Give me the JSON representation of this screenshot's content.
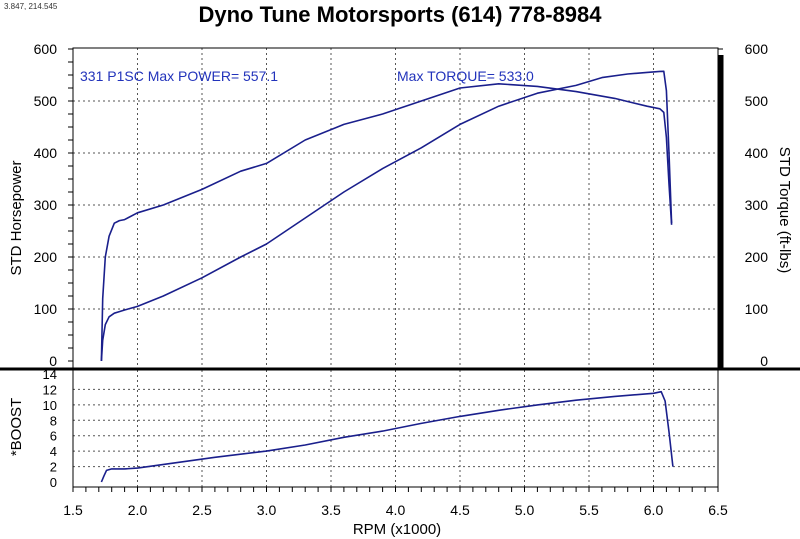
{
  "header": {
    "coords": "3.847, 214.545",
    "title": "Dyno Tune Motorsports (614) 778-8984"
  },
  "chart_data": [
    {
      "type": "line",
      "xlabel": "RPM (x1000)",
      "ylabel": "STD Horsepower",
      "y2label": "STD Torque (ft-lbs)",
      "xlim": [
        1.5,
        6.5
      ],
      "ylim": [
        0,
        600
      ],
      "y2lim": [
        0,
        600
      ],
      "xticks": [
        "1.5",
        "2.0",
        "2.5",
        "3.0",
        "3.5",
        "4.0",
        "4.5",
        "5.0",
        "5.5",
        "6.0",
        "6.5"
      ],
      "yticks": [
        "0",
        "100",
        "200",
        "300",
        "400",
        "500",
        "600"
      ],
      "grid": true,
      "annotations": [
        "331 P1SC  Max POWER= 557.1",
        "Max TORQUE= 533.0"
      ],
      "line_color": "#1a1f8c",
      "series": [
        {
          "axis": "left",
          "x": [
            1.72,
            1.73,
            1.75,
            1.78,
            1.82,
            1.86,
            1.9,
            2.0,
            2.2,
            2.5,
            2.8,
            3.0,
            3.3,
            3.6,
            3.9,
            4.2,
            4.5,
            4.8,
            5.1,
            5.4,
            5.6,
            5.8,
            5.95,
            6.05,
            6.08,
            6.1,
            6.12,
            6.14
          ],
          "y": [
            0,
            40,
            70,
            85,
            92,
            95,
            98,
            105,
            125,
            160,
            200,
            225,
            275,
            325,
            370,
            410,
            455,
            490,
            515,
            530,
            545,
            552,
            555,
            557,
            557.1,
            520,
            400,
            265
          ]
        },
        {
          "axis": "right",
          "x": [
            1.72,
            1.73,
            1.75,
            1.78,
            1.82,
            1.86,
            1.9,
            2.0,
            2.2,
            2.5,
            2.8,
            3.0,
            3.3,
            3.6,
            3.9,
            4.2,
            4.5,
            4.8,
            5.1,
            5.4,
            5.7,
            5.95,
            6.05,
            6.08,
            6.1,
            6.12,
            6.14
          ],
          "y": [
            0,
            120,
            200,
            240,
            265,
            270,
            272,
            285,
            300,
            330,
            365,
            380,
            425,
            455,
            475,
            500,
            525,
            533,
            528,
            518,
            505,
            490,
            485,
            478,
            430,
            340,
            262
          ]
        }
      ]
    },
    {
      "type": "line",
      "xlabel": "RPM (x1000)",
      "ylabel": "*BOOST",
      "xlim": [
        1.5,
        6.5
      ],
      "ylim": [
        0,
        14
      ],
      "yticks": [
        "0",
        "2",
        "4",
        "6",
        "8",
        "10",
        "12",
        "14"
      ],
      "grid": true,
      "line_color": "#1a1f8c",
      "series": [
        {
          "x": [
            1.72,
            1.74,
            1.76,
            1.8,
            1.9,
            2.0,
            2.3,
            2.6,
            3.0,
            3.3,
            3.6,
            3.9,
            4.2,
            4.5,
            4.8,
            5.1,
            5.4,
            5.7,
            6.0,
            6.06,
            6.09,
            6.12,
            6.15
          ],
          "y": [
            0,
            0.8,
            1.5,
            1.7,
            1.7,
            1.8,
            2.5,
            3.2,
            4.0,
            4.8,
            5.8,
            6.6,
            7.6,
            8.5,
            9.3,
            10.0,
            10.6,
            11.1,
            11.5,
            11.7,
            10.5,
            6.5,
            2.0
          ]
        }
      ]
    }
  ]
}
